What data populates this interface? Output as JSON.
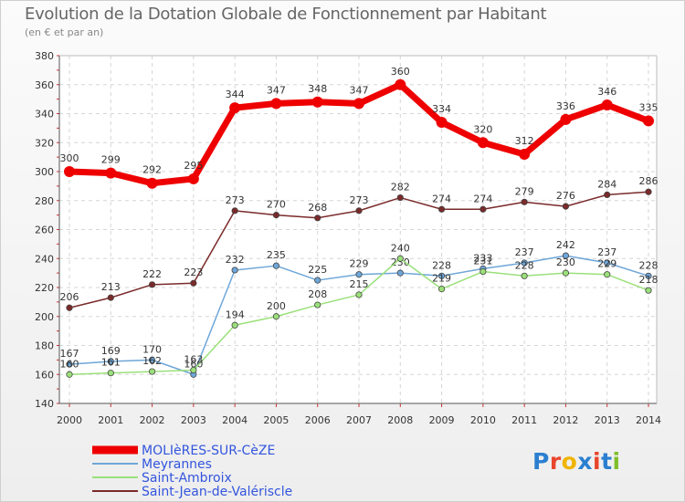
{
  "header": {
    "title": "Evolution de la Dotation Globale de Fonctionnement par Habitant",
    "subtitle": "(en € et par an)"
  },
  "branding": {
    "logo": "Proxiti",
    "letter_colors": [
      "#2b7fd0",
      "#e8452c",
      "#f0b400",
      "#2b7fd0",
      "#e8452c",
      "#2b7fd0",
      "#7fbf2a"
    ]
  },
  "chart_data": {
    "type": "line",
    "x": [
      "2000",
      "2001",
      "2002",
      "2003",
      "2004",
      "2005",
      "2006",
      "2007",
      "2008",
      "2009",
      "2010",
      "2011",
      "2012",
      "2013",
      "2014"
    ],
    "ylim": [
      140,
      380
    ],
    "yticks": [
      140,
      160,
      180,
      200,
      220,
      240,
      260,
      280,
      300,
      320,
      340,
      360,
      380
    ],
    "grid": true,
    "legend": "bottom-left",
    "series": [
      {
        "name": "MOLIèRES-SUR-CèZE",
        "color": "#ee0000",
        "values": [
          300,
          299,
          292,
          295,
          344,
          347,
          348,
          347,
          360,
          334,
          320,
          312,
          336,
          346,
          335
        ]
      },
      {
        "name": "Meyrannes",
        "color": "#6ea6d8",
        "values": [
          167,
          169,
          170,
          160,
          232,
          235,
          225,
          229,
          230,
          228,
          233,
          237,
          242,
          237,
          228
        ]
      },
      {
        "name": "Saint-Ambroix",
        "color": "#9be07a",
        "values": [
          160,
          161,
          162,
          163,
          194,
          200,
          208,
          215,
          240,
          219,
          231,
          228,
          230,
          229,
          218
        ]
      },
      {
        "name": "Saint-Jean-de-Valériscle",
        "color": "#7a2a2a",
        "values": [
          206,
          213,
          222,
          223,
          273,
          270,
          268,
          273,
          282,
          274,
          274,
          279,
          276,
          284,
          286
        ]
      }
    ]
  }
}
